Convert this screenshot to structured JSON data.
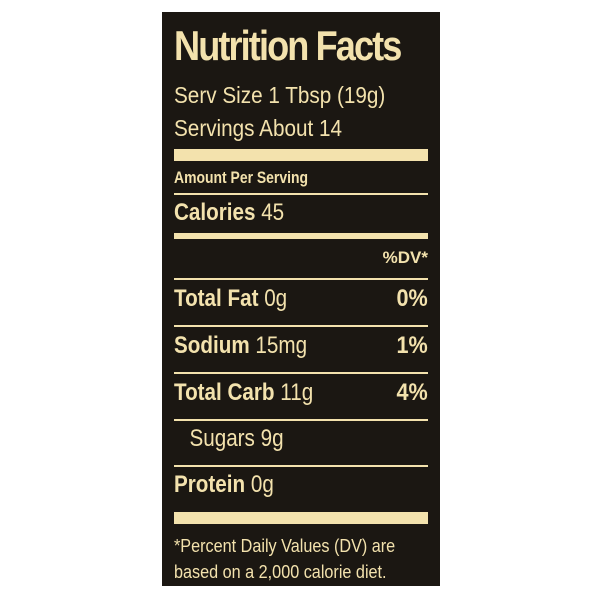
{
  "label": {
    "title": "Nutrition Facts",
    "serving_size": "Serv Size 1 Tbsp (19g)",
    "servings": "Servings About 14",
    "amount_per_serving": "Amount Per Serving",
    "calories_label": "Calories",
    "calories_value": "45",
    "dv_header": "%DV*",
    "nutrients": [
      {
        "name": "Total Fat",
        "amount": "0g",
        "dv": "0%"
      },
      {
        "name": "Sodium",
        "amount": "15mg",
        "dv": "1%"
      },
      {
        "name": "Total Carb",
        "amount": "11g",
        "dv": "4%"
      },
      {
        "name": "Sugars",
        "amount": "9g",
        "dv": ""
      },
      {
        "name": "Protein",
        "amount": "0g",
        "dv": ""
      }
    ],
    "footnote_line1": "*Percent Daily Values (DV) are",
    "footnote_line2": "based on a 2,000 calorie diet."
  },
  "colors": {
    "background": "#1b1712",
    "text": "#f3e2ad"
  }
}
